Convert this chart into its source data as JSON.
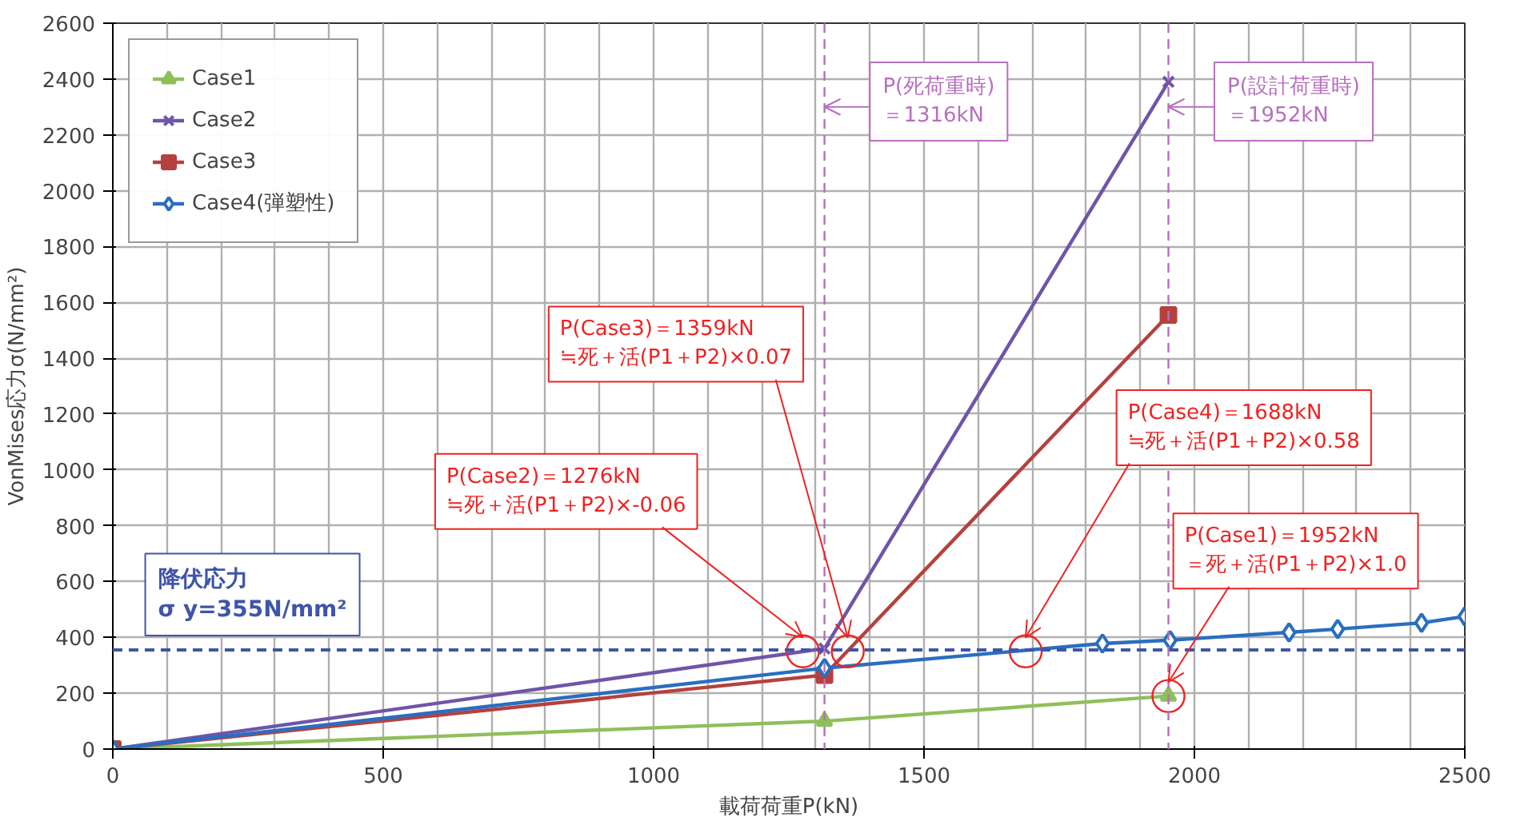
{
  "chart_data": {
    "type": "line",
    "xlabel": "載荷荷重P(kN)",
    "ylabel": "VonMises応力σ(N/mm²)",
    "xlim": [
      0,
      2500
    ],
    "xticks": [
      0,
      500,
      1000,
      1500,
      2000,
      2500
    ],
    "ylim": [
      0,
      2600
    ],
    "yticks": [
      0,
      200,
      400,
      600,
      800,
      1000,
      1200,
      1400,
      1600,
      1800,
      2000,
      2200,
      2400,
      2600
    ],
    "grid": true,
    "legend": "top left",
    "line_style": "solid",
    "series": [
      {
        "name": "Case1",
        "color": "#8fbf5a",
        "marker": "triangle",
        "x": [
          0,
          1316,
          1952
        ],
        "values": [
          0,
          100,
          190
        ]
      },
      {
        "name": "Case2",
        "color": "#6f55a8",
        "marker": "cross",
        "x": [
          0,
          1316,
          1952
        ],
        "values": [
          0,
          360,
          2390
        ]
      },
      {
        "name": "Case3",
        "color": "#b5413e",
        "marker": "square",
        "x": [
          0,
          1316,
          1952
        ],
        "values": [
          0,
          265,
          1555
        ]
      },
      {
        "name": "Case4(弾塑性)",
        "color": "#2a6ebf",
        "marker": "diamond",
        "x": [
          0,
          1316,
          1830,
          1955,
          2175,
          2265,
          2420,
          2500
        ],
        "values": [
          0,
          290,
          378,
          390,
          418,
          430,
          452,
          475
        ]
      }
    ],
    "ref_lines": [
      {
        "axis": "y",
        "value": 355,
        "label": "降伏応力\nσ y=355N/mm²",
        "color": "#3f55a8",
        "line_style": "dashed"
      },
      {
        "axis": "x",
        "value": 1316,
        "label": "P(死荷重時)\n＝1316kN",
        "color": "#b76fbf",
        "line_style": "dashed"
      },
      {
        "axis": "x",
        "value": 1952,
        "label": "P(設計荷重時)\n＝1952kN",
        "color": "#b76fbf",
        "line_style": "dashed"
      }
    ],
    "annotations": [
      {
        "text": "P(Case2)＝1276kN\n≒死＋活(P1＋P2)×-0.06",
        "x": 1276,
        "y": 350
      },
      {
        "text": "P(Case3)＝1359kN\n≒死＋活(P1＋P2)×0.07",
        "x": 1359,
        "y": 350
      },
      {
        "text": "P(Case4)＝1688kN\n≒死＋活(P1＋P2)×0.58",
        "x": 1688,
        "y": 350
      },
      {
        "text": "P(Case1)＝1952kN\n＝死＋活(P1＋P2)×1.0",
        "x": 1952,
        "y": 190
      }
    ]
  }
}
